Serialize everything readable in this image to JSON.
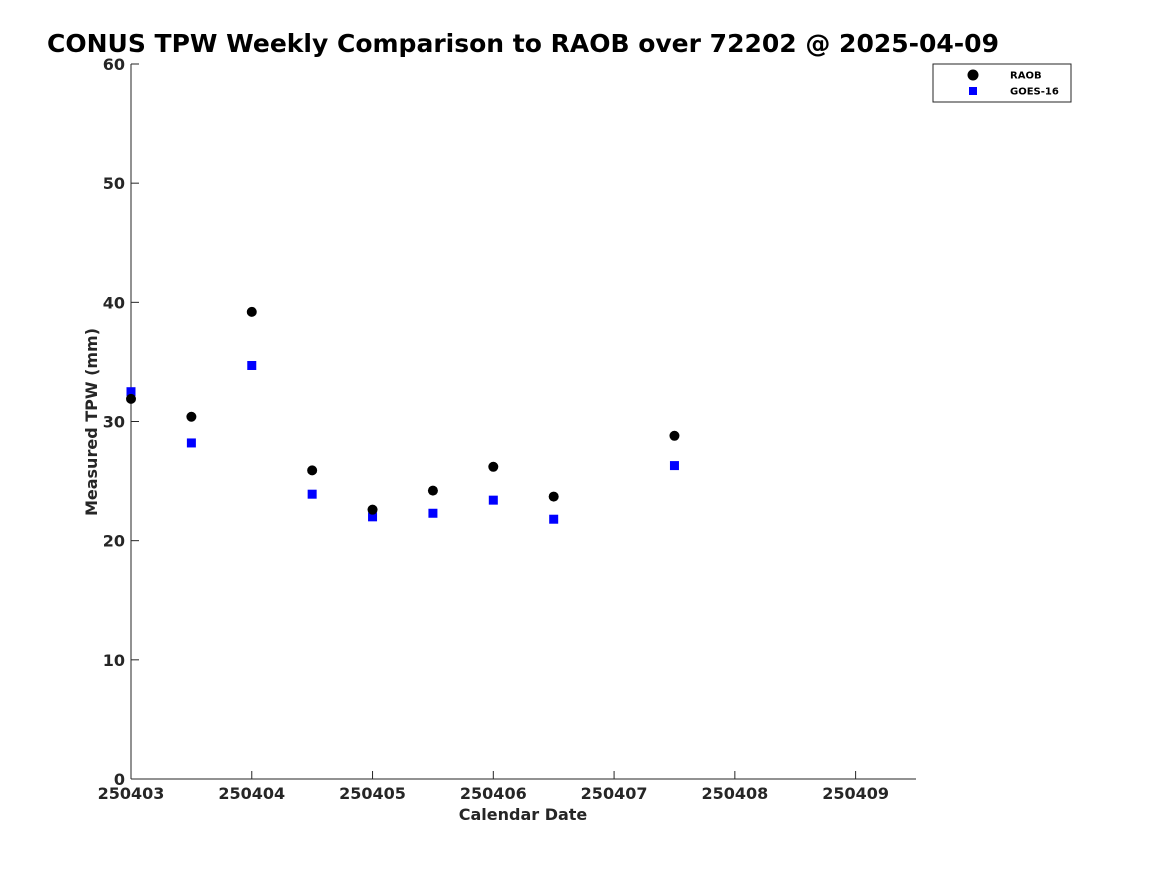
{
  "chart_data": {
    "type": "scatter",
    "title": "CONUS TPW Weekly Comparison to RAOB over 72202 @ 2025-04-09",
    "xlabel": "Calendar Date",
    "ylabel": "Measured TPW (mm)",
    "xlim": [
      250403,
      250409.5
    ],
    "ylim": [
      0,
      60
    ],
    "xticks": [
      250403,
      250404,
      250405,
      250406,
      250407,
      250408,
      250409
    ],
    "xtick_labels": [
      "250403",
      "250404",
      "250405",
      "250406",
      "250407",
      "250408",
      "250409"
    ],
    "yticks": [
      0,
      10,
      20,
      30,
      40,
      50,
      60
    ],
    "ytick_labels": [
      "0",
      "10",
      "20",
      "30",
      "40",
      "50",
      "60"
    ],
    "grid": false,
    "legend_position": "top-right",
    "series": [
      {
        "name": "RAOB",
        "color": "#000000",
        "marker": "circle",
        "x": [
          250403.0,
          250403.5,
          250404.0,
          250404.5,
          250405.0,
          250405.5,
          250406.0,
          250406.5,
          250407.5
        ],
        "y": [
          31.9,
          30.4,
          39.2,
          25.9,
          22.6,
          24.2,
          26.2,
          23.7,
          28.8
        ]
      },
      {
        "name": "GOES-16",
        "color": "#0000ff",
        "marker": "square",
        "x": [
          250403.0,
          250403.5,
          250404.0,
          250404.5,
          250405.0,
          250405.5,
          250406.0,
          250406.5,
          250407.5
        ],
        "y": [
          32.5,
          28.2,
          34.7,
          23.9,
          22.0,
          22.3,
          23.4,
          21.8,
          26.3
        ]
      }
    ]
  }
}
